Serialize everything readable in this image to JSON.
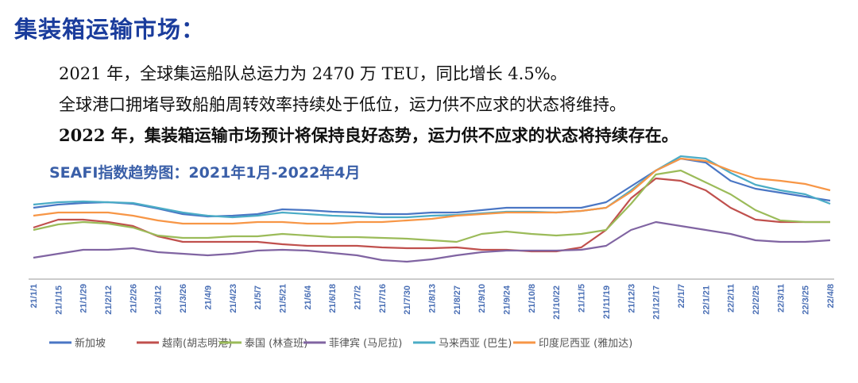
{
  "header": {
    "title": "集装箱运输市场："
  },
  "paragraphs": [
    "2021 年，全球集运船队总运力为 2470 万 TEU，同比增长 4.5%。",
    "全球港口拥堵导致船舶周转效率持续处于低位，运力供不应求的状态将维持。",
    "2022 年，集装箱运输市场预计将保持良好态势，运力供不应求的状态将持续存在。"
  ],
  "chart_data": {
    "type": "line",
    "title": "SEAFI指数趋势图：2021年1月-2022年4月",
    "xlabel": "",
    "ylabel": "",
    "legend": "bottom",
    "grid": false,
    "ylim": [
      0,
      160
    ],
    "categories": [
      "21/1/1",
      "21/1/15",
      "21/1/29",
      "21/2/12",
      "21/2/26",
      "21/3/12",
      "21/3/26",
      "21/4/9",
      "21/4/23",
      "21/5/7",
      "21/5/21",
      "21/6/4",
      "21/6/18",
      "21/7/2",
      "21/7/16",
      "21/7/30",
      "21/8/13",
      "21/8/27",
      "21/9/10",
      "21/9/24",
      "21/10/8",
      "21/10/22",
      "21/11/5",
      "21/11/19",
      "21/12/3",
      "21/12/17",
      "22/1/7",
      "22/1/21",
      "22/2/11",
      "22/2/25",
      "22/3/11",
      "22/3/25",
      "22/4/8"
    ],
    "series": [
      {
        "name": "新加坡",
        "color": "#4a76c4",
        "values": [
          90,
          94,
          96,
          97,
          95,
          89,
          82,
          79,
          80,
          82,
          88,
          87,
          85,
          84,
          82,
          82,
          84,
          84,
          87,
          90,
          90,
          90,
          90,
          97,
          117,
          137,
          152,
          147,
          124,
          114,
          109,
          104,
          99
        ]
      },
      {
        "name": "越南(胡志明港)",
        "color": "#c0504d",
        "values": [
          65,
          75,
          75,
          72,
          67,
          54,
          47,
          47,
          47,
          47,
          44,
          42,
          42,
          42,
          40,
          39,
          39,
          40,
          37,
          37,
          35,
          35,
          40,
          62,
          102,
          127,
          124,
          112,
          90,
          75,
          72,
          72,
          72
        ]
      },
      {
        "name": "泰国 (林查班)",
        "color": "#9bbb59",
        "values": [
          62,
          69,
          72,
          70,
          65,
          55,
          52,
          52,
          54,
          54,
          57,
          55,
          53,
          53,
          52,
          51,
          49,
          47,
          57,
          60,
          57,
          55,
          57,
          62,
          95,
          132,
          137,
          122,
          107,
          87,
          74,
          72,
          72
        ]
      },
      {
        "name": "菲律宾 (马尼拉)",
        "color": "#8064a2",
        "values": [
          27,
          32,
          37,
          37,
          39,
          34,
          32,
          30,
          32,
          36,
          37,
          36,
          33,
          30,
          24,
          22,
          25,
          30,
          34,
          36,
          36,
          36,
          37,
          42,
          62,
          72,
          67,
          62,
          57,
          49,
          47,
          47,
          49
        ]
      },
      {
        "name": "马来西亚 (巴生)",
        "color": "#4bacc6",
        "values": [
          94,
          97,
          98,
          97,
          96,
          90,
          84,
          80,
          78,
          80,
          84,
          82,
          80,
          79,
          78,
          78,
          80,
          81,
          83,
          85,
          85,
          84,
          86,
          90,
          112,
          137,
          155,
          152,
          134,
          119,
          112,
          107,
          95
        ]
      },
      {
        "name": "印度尼西亚 (雅加达)",
        "color": "#f79646",
        "values": [
          80,
          84,
          84,
          84,
          80,
          74,
          70,
          70,
          70,
          72,
          72,
          70,
          70,
          72,
          72,
          74,
          76,
          80,
          82,
          84,
          84,
          84,
          86,
          90,
          110,
          137,
          152,
          149,
          137,
          127,
          124,
          120,
          112
        ]
      }
    ]
  }
}
